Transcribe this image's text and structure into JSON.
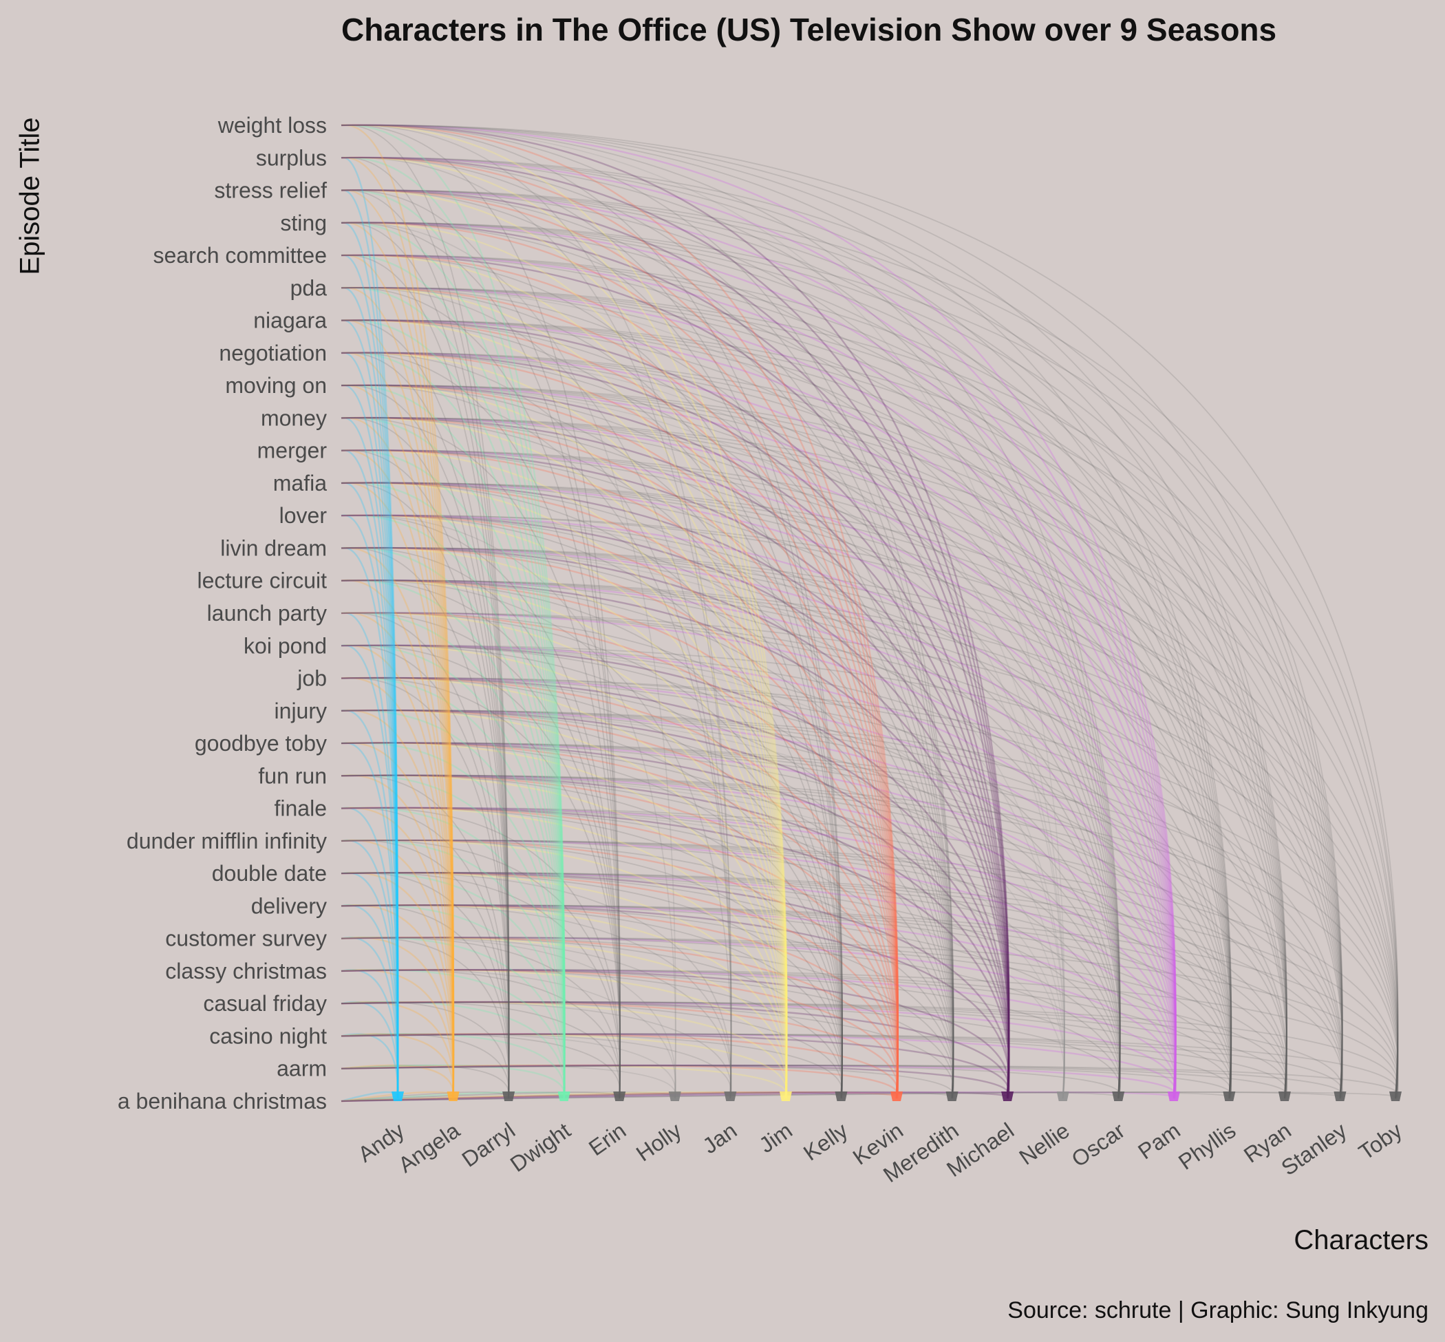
{
  "chart_data": {
    "type": "arc",
    "title": "Characters in The Office (US) Television Show over 9 Seasons",
    "xlabel": "Characters",
    "ylabel": "Episode Title",
    "caption": "Source: schrute | Graphic: Sung Inkyung",
    "episodes": [
      "a benihana christmas",
      "aarm",
      "casino night",
      "casual friday",
      "classy christmas",
      "customer survey",
      "delivery",
      "double date",
      "dunder mifflin infinity",
      "finale",
      "fun run",
      "goodbye toby",
      "injury",
      "job",
      "koi pond",
      "launch party",
      "lecture circuit",
      "livin dream",
      "lover",
      "mafia",
      "merger",
      "money",
      "moving on",
      "negotiation",
      "niagara",
      "pda",
      "search committee",
      "sting",
      "stress relief",
      "surplus",
      "weight loss"
    ],
    "characters": [
      "Andy",
      "Angela",
      "Darryl",
      "Dwight",
      "Erin",
      "Holly",
      "Jan",
      "Jim",
      "Kelly",
      "Kevin",
      "Meredith",
      "Michael",
      "Nellie",
      "Oscar",
      "Pam",
      "Phyllis",
      "Ryan",
      "Stanley",
      "Toby"
    ],
    "character_colors": {
      "Andy": "#1ec8ff",
      "Angela": "#ffb03a",
      "Darryl": "#606060",
      "Dwight": "#6ff0b0",
      "Erin": "#606060",
      "Holly": "#808080",
      "Jan": "#707070",
      "Jim": "#fff07a",
      "Kelly": "#606060",
      "Kevin": "#ff6a4a",
      "Meredith": "#606060",
      "Michael": "#5a2060",
      "Nellie": "#909090",
      "Oscar": "#606060",
      "Pam": "#d060e8",
      "Phyllis": "#606060",
      "Ryan": "#606060",
      "Stanley": "#606060",
      "Toby": "#606060"
    },
    "grid": false,
    "legend": "none"
  }
}
